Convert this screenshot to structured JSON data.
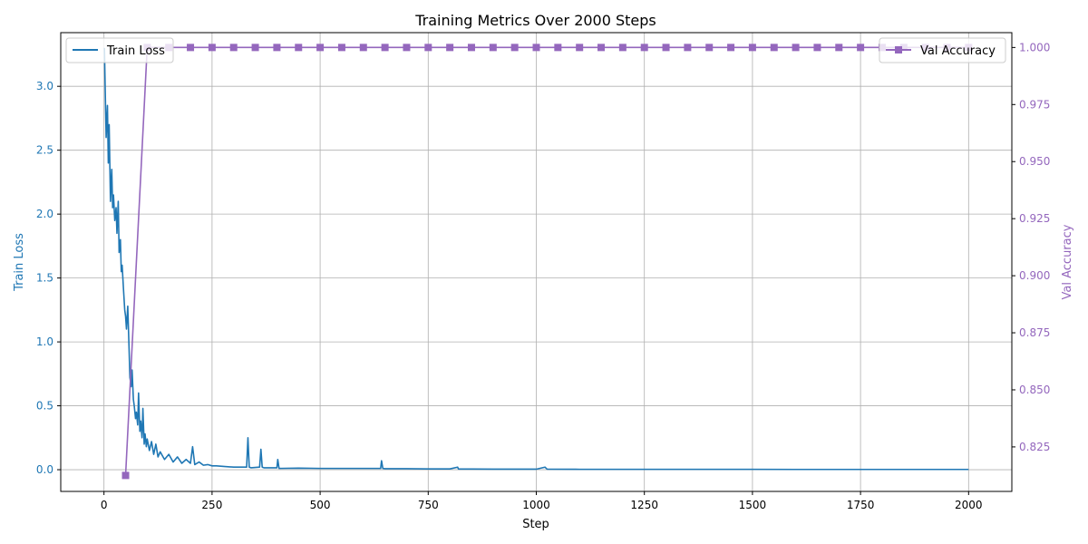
{
  "colors": {
    "loss": "#1f77b4",
    "accuracy": "#9467bd",
    "grid": "#b0b0b0",
    "axis": "#000000"
  },
  "chart_data": {
    "type": "line",
    "title": "Training Metrics Over 2000 Steps",
    "xlabel": "Step",
    "ylabel_left": "Train Loss",
    "ylabel_right": "Val Accuracy",
    "xlim": [
      -100,
      2100
    ],
    "ylim_left": [
      -0.17,
      3.42
    ],
    "ylim_right": [
      0.8055,
      1.0065
    ],
    "x_ticks": [
      0,
      250,
      500,
      750,
      1000,
      1250,
      1500,
      1750,
      2000
    ],
    "x_tick_labels": [
      "0",
      "250",
      "500",
      "750",
      "1000",
      "1250",
      "1500",
      "1750",
      "2000"
    ],
    "y_left_ticks": [
      0.0,
      0.5,
      1.0,
      1.5,
      2.0,
      2.5,
      3.0
    ],
    "y_left_tick_labels": [
      "0.0",
      "0.5",
      "1.0",
      "1.5",
      "2.0",
      "2.5",
      "3.0"
    ],
    "y_right_ticks": [
      0.825,
      0.85,
      0.875,
      0.9,
      0.925,
      0.95,
      0.975,
      1.0
    ],
    "y_right_tick_labels": [
      "0.825",
      "0.850",
      "0.875",
      "0.900",
      "0.925",
      "0.950",
      "0.975",
      "1.000"
    ],
    "grid": true,
    "series": [
      {
        "name": "Train Loss",
        "axis": "left",
        "marker": "none",
        "legend": "upper left",
        "x": [
          1,
          3,
          5,
          8,
          10,
          12,
          15,
          18,
          20,
          22,
          25,
          28,
          30,
          33,
          35,
          38,
          40,
          42,
          45,
          48,
          50,
          52,
          55,
          58,
          60,
          63,
          65,
          68,
          70,
          73,
          75,
          78,
          80,
          83,
          85,
          88,
          90,
          93,
          95,
          98,
          100,
          105,
          110,
          115,
          120,
          125,
          130,
          140,
          150,
          160,
          170,
          180,
          190,
          200,
          205,
          210,
          220,
          230,
          240,
          250,
          260,
          280,
          300,
          320,
          330,
          333,
          336,
          340,
          360,
          363,
          366,
          370,
          400,
          402,
          405,
          450,
          500,
          550,
          600,
          640,
          642,
          645,
          650,
          700,
          750,
          800,
          818,
          820,
          850,
          900,
          950,
          1000,
          1020,
          1025,
          1100,
          1200,
          1300,
          1400,
          1500,
          1600,
          1700,
          1800,
          1900,
          2000
        ],
        "y": [
          3.3,
          2.95,
          2.6,
          2.85,
          2.4,
          2.7,
          2.1,
          2.35,
          2.05,
          2.15,
          1.95,
          2.05,
          1.85,
          2.1,
          1.7,
          1.8,
          1.55,
          1.6,
          1.42,
          1.25,
          1.2,
          1.1,
          1.28,
          0.95,
          0.72,
          0.65,
          0.78,
          0.55,
          0.5,
          0.4,
          0.45,
          0.35,
          0.6,
          0.3,
          0.38,
          0.25,
          0.48,
          0.2,
          0.28,
          0.18,
          0.24,
          0.15,
          0.22,
          0.12,
          0.2,
          0.1,
          0.14,
          0.08,
          0.12,
          0.06,
          0.1,
          0.05,
          0.08,
          0.05,
          0.18,
          0.04,
          0.06,
          0.035,
          0.04,
          0.03,
          0.03,
          0.025,
          0.02,
          0.02,
          0.02,
          0.25,
          0.02,
          0.015,
          0.02,
          0.16,
          0.02,
          0.015,
          0.015,
          0.08,
          0.01,
          0.012,
          0.01,
          0.01,
          0.01,
          0.01,
          0.07,
          0.01,
          0.008,
          0.008,
          0.006,
          0.006,
          0.02,
          0.005,
          0.005,
          0.004,
          0.004,
          0.004,
          0.02,
          0.004,
          0.003,
          0.003,
          0.003,
          0.003,
          0.003,
          0.002,
          0.002,
          0.002,
          0.002,
          0.002
        ]
      },
      {
        "name": "Val Accuracy",
        "axis": "right",
        "marker": "square",
        "legend": "upper right",
        "x": [
          50,
          100,
          150,
          200,
          250,
          300,
          350,
          400,
          450,
          500,
          550,
          600,
          650,
          700,
          750,
          800,
          850,
          900,
          950,
          1000,
          1050,
          1100,
          1150,
          1200,
          1250,
          1300,
          1350,
          1400,
          1450,
          1500,
          1550,
          1600,
          1650,
          1700,
          1750,
          1800,
          1850,
          1900,
          1950,
          2000
        ],
        "y": [
          0.8125,
          1.0,
          1.0,
          1.0,
          1.0,
          1.0,
          1.0,
          1.0,
          1.0,
          1.0,
          1.0,
          1.0,
          1.0,
          1.0,
          1.0,
          1.0,
          1.0,
          1.0,
          1.0,
          1.0,
          1.0,
          1.0,
          1.0,
          1.0,
          1.0,
          1.0,
          1.0,
          1.0,
          1.0,
          1.0,
          1.0,
          1.0,
          1.0,
          1.0,
          1.0,
          1.0,
          1.0,
          1.0,
          1.0,
          1.0
        ]
      }
    ]
  }
}
